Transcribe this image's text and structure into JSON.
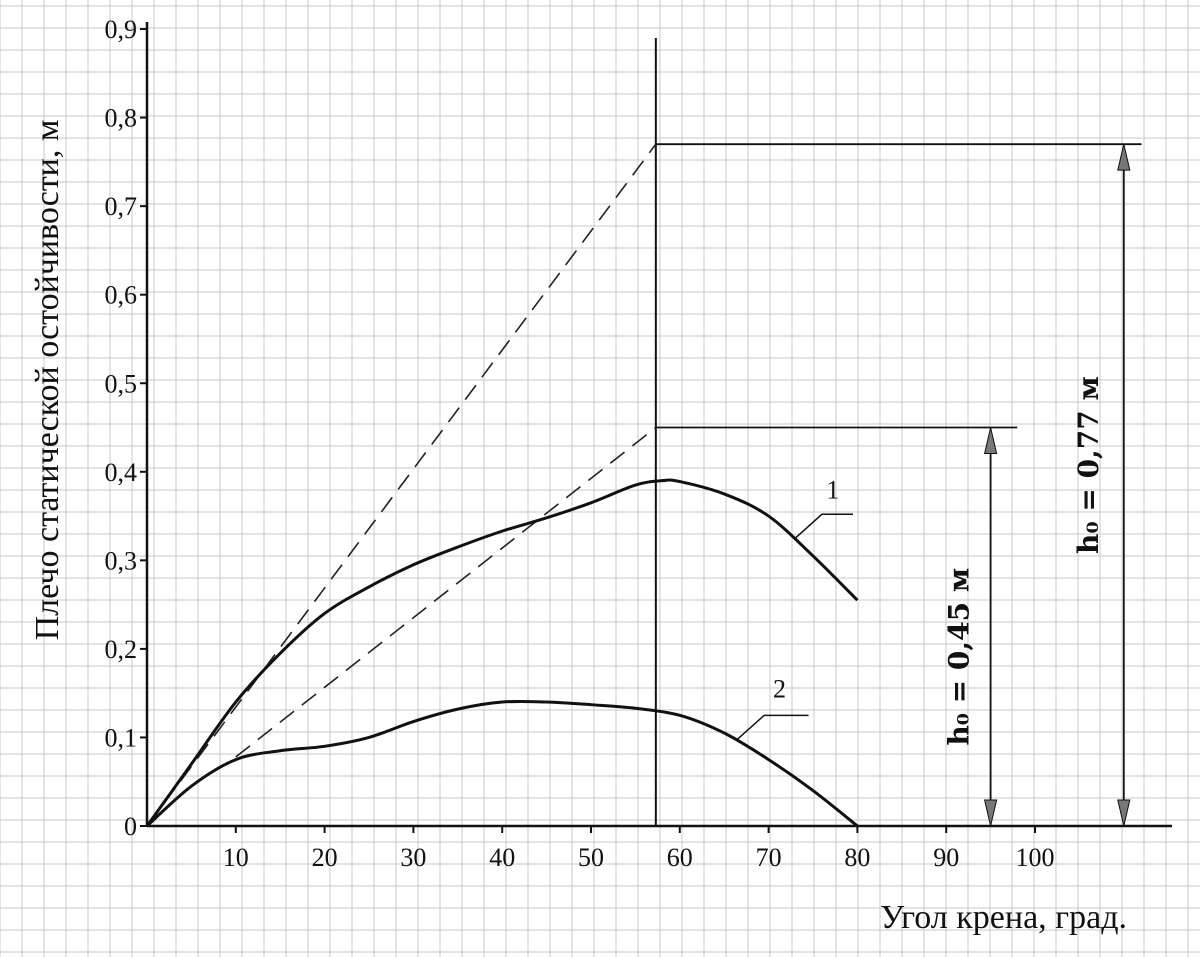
{
  "chart_data": {
    "type": "line",
    "ylabel": "Плечо статической остойчивости, м",
    "xlabel": "Угол крена, град.",
    "xlim": [
      0,
      115
    ],
    "ylim": [
      0,
      0.9
    ],
    "x_ticks": [
      10,
      20,
      30,
      40,
      50,
      60,
      70,
      80,
      90,
      100
    ],
    "x_tick_labels": [
      "10",
      "20",
      "30",
      "40",
      "50",
      "60",
      "70",
      "80",
      "90",
      "100"
    ],
    "y_ticks": [
      0,
      0.1,
      0.2,
      0.3,
      0.4,
      0.5,
      0.6,
      0.7,
      0.8,
      0.9
    ],
    "y_tick_labels": [
      "0",
      "0,1",
      "0,2",
      "0,3",
      "0,4",
      "0,5",
      "0,6",
      "0,7",
      "0,8",
      "0,9"
    ],
    "grid": true,
    "series": [
      {
        "name": "1",
        "x": [
          0,
          5,
          10,
          15,
          20,
          25,
          30,
          35,
          40,
          45,
          50,
          55,
          58,
          60,
          65,
          70,
          75,
          80
        ],
        "y": [
          0,
          0.07,
          0.14,
          0.195,
          0.24,
          0.27,
          0.295,
          0.315,
          0.333,
          0.348,
          0.365,
          0.385,
          0.39,
          0.389,
          0.375,
          0.35,
          0.305,
          0.255
        ]
      },
      {
        "name": "2",
        "x": [
          0,
          5,
          10,
          15,
          20,
          25,
          30,
          35,
          40,
          45,
          50,
          55,
          60,
          65,
          70,
          75,
          80
        ],
        "y": [
          0,
          0.045,
          0.075,
          0.085,
          0.09,
          0.1,
          0.118,
          0.132,
          0.14,
          0.14,
          0.137,
          0.133,
          0.125,
          0.105,
          0.075,
          0.04,
          0
        ]
      }
    ],
    "construction": {
      "vertical_line_x": 57.3,
      "tangent_1": {
        "from": [
          0,
          0
        ],
        "to": [
          57.3,
          0.77
        ]
      },
      "tangent_2": {
        "from": [
          10,
          0.078
        ],
        "to": [
          57.3,
          0.45
        ]
      },
      "h_levels": [
        {
          "y": 0.45,
          "x_end": 98,
          "arrow_x": 95,
          "label": "h₀ = 0,45 м"
        },
        {
          "y": 0.77,
          "x_end": 112,
          "arrow_x": 110,
          "label": "h₀ = 0,77 м"
        }
      ]
    }
  }
}
